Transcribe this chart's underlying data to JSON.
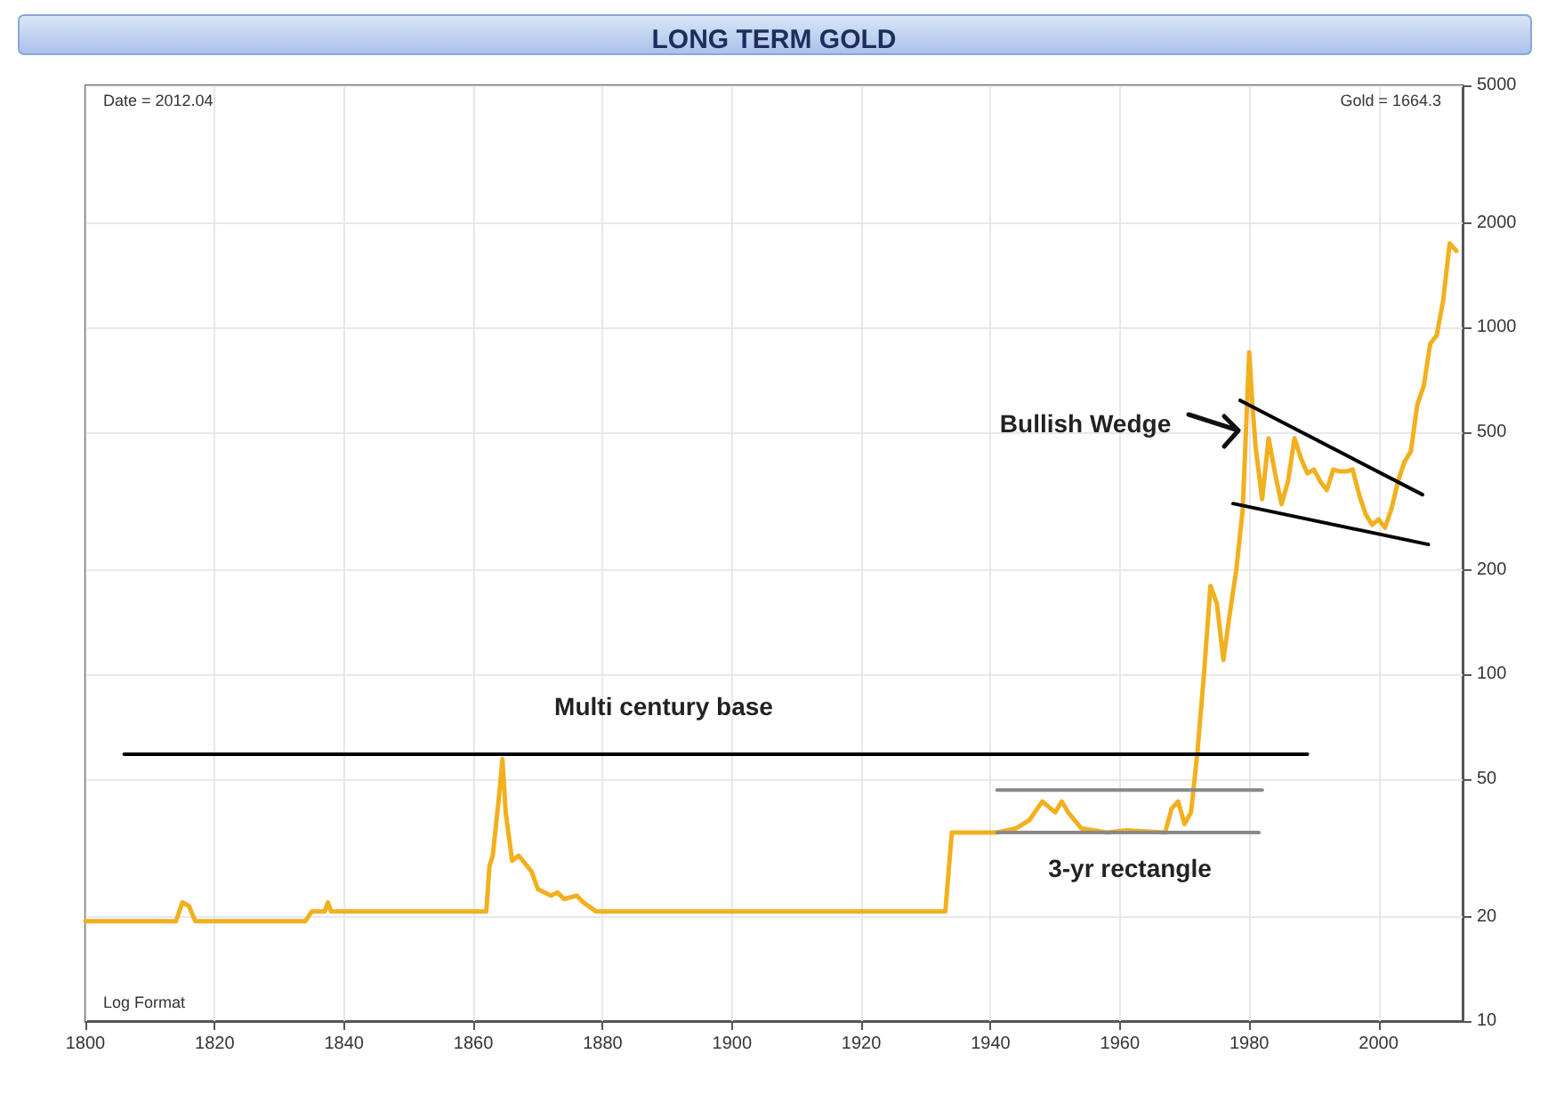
{
  "chart_data": {
    "type": "line",
    "title": "LONG TERM GOLD",
    "log": "y",
    "grid": true,
    "xlim": [
      1800,
      2013
    ],
    "xticks": [
      1800,
      1820,
      1840,
      1860,
      1880,
      1900,
      1920,
      1940,
      1960,
      1980,
      2000
    ],
    "ylim": [
      10,
      5000
    ],
    "yticks": [
      10,
      20,
      50,
      100,
      200,
      500,
      1000,
      2000,
      5000
    ],
    "annotations": [
      "Date = 2012.04",
      "Gold = 1664.3",
      "Log Format",
      "Multi century base",
      "3-yr rectangle",
      "Bullish Wedge"
    ],
    "series": [
      {
        "color": "#f2b01e",
        "x": [
          1800,
          1814,
          1815,
          1816,
          1817,
          1834,
          1835,
          1837,
          1837.5,
          1838,
          1862,
          1862.5,
          1863,
          1864,
          1864.5,
          1865,
          1866,
          1867,
          1868,
          1869,
          1870,
          1872,
          1873,
          1874,
          1876,
          1877,
          1879,
          1933,
          1934,
          1941,
          1944,
          1946,
          1948,
          1950,
          1951,
          1952,
          1954,
          1958,
          1961,
          1967,
          1968,
          1969,
          1970,
          1971,
          1972,
          1973,
          1974,
          1975,
          1976,
          1977,
          1978,
          1979,
          1980,
          1980.5,
          1981,
          1982,
          1983,
          1984,
          1985,
          1986,
          1987,
          1988,
          1989,
          1990,
          1991,
          1992,
          1993,
          1994,
          1995,
          1996,
          1997,
          1998,
          1999,
          2000,
          2001,
          2002,
          2003,
          2004,
          2005,
          2006,
          2007,
          2008,
          2009,
          2010,
          2011,
          2012.04
        ],
        "values": [
          19.4,
          19.4,
          22,
          21.5,
          19.4,
          19.4,
          20.7,
          20.7,
          22,
          20.7,
          20.7,
          28,
          30,
          45,
          57,
          40,
          29,
          30,
          28.5,
          27,
          24,
          23,
          23.5,
          22.5,
          23,
          22,
          20.7,
          20.7,
          35,
          35,
          36,
          38,
          43,
          40,
          43,
          40,
          36,
          35,
          35.5,
          35,
          41,
          43,
          37,
          40,
          60,
          100,
          180,
          160,
          110,
          150,
          200,
          300,
          850,
          600,
          450,
          320,
          480,
          380,
          310,
          360,
          480,
          420,
          380,
          390,
          360,
          340,
          390,
          385,
          385,
          390,
          330,
          290,
          270,
          280,
          265,
          300,
          360,
          410,
          440,
          600,
          680,
          900,
          950,
          1200,
          1750,
          1664.3
        ]
      },
      {
        "type": "line",
        "color": "#000000",
        "x": [
          1806,
          1989
        ],
        "values": [
          58.8,
          58.8
        ]
      },
      {
        "type": "line",
        "color": "#888888",
        "x": [
          1941,
          1982
        ],
        "values": [
          46.4,
          46.4
        ]
      },
      {
        "type": "line",
        "color": "#888888",
        "x": [
          1941,
          1981.5
        ],
        "values": [
          35,
          35
        ]
      },
      {
        "type": "line",
        "color": "#000000",
        "x": [
          1978.6,
          2006.8
        ],
        "values": [
          617,
          330
        ]
      },
      {
        "type": "line",
        "color": "#000000",
        "x": [
          1977.5,
          2007.7
        ],
        "values": [
          311,
          237
        ]
      }
    ]
  }
}
